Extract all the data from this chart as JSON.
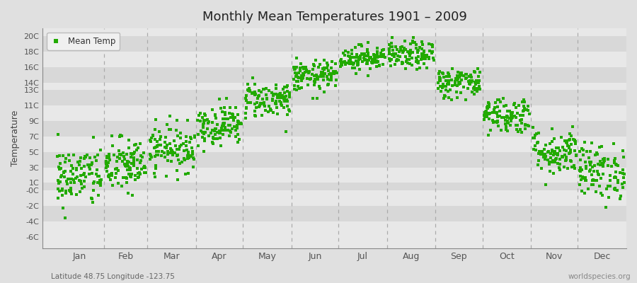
{
  "title": "Monthly Mean Temperatures 1901 – 2009",
  "ylabel": "Temperature",
  "ytick_labels": [
    "20C",
    "18C",
    "16C",
    "14C",
    "13C",
    "11C",
    "9C",
    "7C",
    "5C",
    "3C",
    "1C",
    "-0C",
    "-2C",
    "-4C",
    "-6C"
  ],
  "ytick_values": [
    20,
    18,
    16,
    14,
    13,
    11,
    9,
    7,
    5,
    3,
    1,
    0,
    -2,
    -4,
    -6
  ],
  "ylim": [
    -7.5,
    21
  ],
  "months": [
    "Jan",
    "Feb",
    "Mar",
    "Apr",
    "May",
    "Jun",
    "Jul",
    "Aug",
    "Sep",
    "Oct",
    "Nov",
    "Dec"
  ],
  "dot_color": "#22aa00",
  "dot_size": 5,
  "fig_bg": "#e0e0e0",
  "band_colors": [
    "#e8e8e8",
    "#d8d8d8"
  ],
  "dash_color": "#aaaaaa",
  "legend_label": "Mean Temp",
  "footer_left": "Latitude 48.75 Longitude -123.75",
  "footer_right": "worldspecies.org",
  "monthly_means": [
    1.8,
    3.2,
    5.5,
    8.5,
    11.8,
    14.8,
    17.2,
    17.5,
    14.0,
    9.8,
    5.0,
    2.5
  ],
  "monthly_stds": [
    2.0,
    1.8,
    1.5,
    1.3,
    1.2,
    1.0,
    0.8,
    0.9,
    1.0,
    1.2,
    1.5,
    1.8
  ],
  "n_years": 109,
  "seed": 42,
  "month_starts": [
    0,
    31,
    59,
    90,
    120,
    151,
    181,
    212,
    243,
    273,
    304,
    334
  ],
  "month_lengths": [
    31,
    28,
    31,
    30,
    31,
    30,
    31,
    31,
    30,
    31,
    30,
    31
  ]
}
